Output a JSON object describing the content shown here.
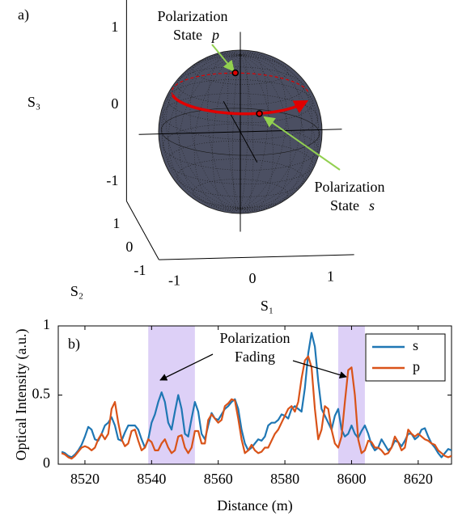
{
  "chart_data": [
    {
      "type": "sphere",
      "panel_label": "a)",
      "xlabel": "S₁",
      "ylabel": "S₂",
      "zlabel": "S₃",
      "xticks": [
        -1,
        0,
        1
      ],
      "yticks": [
        -1,
        0,
        1
      ],
      "zticks": [
        -1,
        0,
        1
      ],
      "sphere_color": "#4b4f62",
      "trajectory": {
        "color": "#e00000",
        "s3": 0.5
      },
      "points": [
        {
          "s1": 0.08,
          "s2": 0.87,
          "s3": 0.5,
          "label_lines": [
            "Polarization",
            "State"
          ],
          "label_symbol": "p"
        },
        {
          "s1": 0.1,
          "s2": -0.87,
          "s3": 0.5,
          "label_lines": [
            "Polarization",
            "State"
          ],
          "label_symbol": "s"
        }
      ],
      "annotation_color": "#92d050"
    },
    {
      "type": "line",
      "panel_label": "b)",
      "xlabel": "Distance (m)",
      "ylabel": "Optical Intensity (a.u.)",
      "xlim": [
        8512,
        8630
      ],
      "ylim": [
        0,
        1
      ],
      "xticks": [
        8520,
        8540,
        8560,
        8580,
        8600,
        8620
      ],
      "yticks": [
        0,
        0.5,
        1
      ],
      "legend": "upper right",
      "highlights": [
        [
          8539,
          8553
        ],
        [
          8596,
          8604
        ]
      ],
      "highlight_color": "#ddd0f7",
      "annotation_lines": [
        "Polarization",
        "Fading"
      ],
      "x": [
        8513,
        8514,
        8515,
        8516,
        8517,
        8518,
        8519,
        8520,
        8521,
        8522,
        8523,
        8524,
        8525,
        8526,
        8527,
        8528,
        8529,
        8530,
        8531,
        8532,
        8533,
        8534,
        8535,
        8536,
        8537,
        8538,
        8539,
        8540,
        8541,
        8542,
        8543,
        8544,
        8545,
        8546,
        8547,
        8548,
        8549,
        8550,
        8551,
        8552,
        8553,
        8554,
        8555,
        8556,
        8557,
        8558,
        8559,
        8560,
        8561,
        8562,
        8563,
        8564,
        8565,
        8566,
        8567,
        8568,
        8569,
        8570,
        8571,
        8572,
        8573,
        8574,
        8575,
        8576,
        8577,
        8578,
        8579,
        8580,
        8581,
        8582,
        8583,
        8584,
        8585,
        8586,
        8587,
        8588,
        8589,
        8590,
        8591,
        8592,
        8593,
        8594,
        8595,
        8596,
        8597,
        8598,
        8599,
        8600,
        8601,
        8602,
        8603,
        8604,
        8605,
        8606,
        8607,
        8608,
        8609,
        8610,
        8611,
        8612,
        8613,
        8614,
        8615,
        8616,
        8617,
        8618,
        8619,
        8620,
        8621,
        8622,
        8623,
        8624,
        8625,
        8626,
        8627,
        8628,
        8629,
        8630
      ],
      "series": [
        {
          "name": "s",
          "color": "#1f77b4",
          "values": [
            0.09,
            0.08,
            0.06,
            0.05,
            0.07,
            0.1,
            0.14,
            0.2,
            0.27,
            0.25,
            0.18,
            0.17,
            0.22,
            0.28,
            0.3,
            0.34,
            0.28,
            0.18,
            0.17,
            0.23,
            0.28,
            0.28,
            0.28,
            0.25,
            0.18,
            0.12,
            0.18,
            0.3,
            0.36,
            0.45,
            0.52,
            0.45,
            0.3,
            0.25,
            0.38,
            0.5,
            0.4,
            0.22,
            0.2,
            0.33,
            0.45,
            0.38,
            0.22,
            0.18,
            0.28,
            0.37,
            0.33,
            0.32,
            0.36,
            0.4,
            0.42,
            0.45,
            0.47,
            0.4,
            0.25,
            0.15,
            0.1,
            0.12,
            0.15,
            0.18,
            0.17,
            0.2,
            0.28,
            0.3,
            0.3,
            0.32,
            0.36,
            0.35,
            0.33,
            0.4,
            0.42,
            0.4,
            0.38,
            0.55,
            0.8,
            0.95,
            0.85,
            0.6,
            0.4,
            0.35,
            0.3,
            0.25,
            0.35,
            0.4,
            0.25,
            0.2,
            0.22,
            0.28,
            0.22,
            0.19,
            0.24,
            0.28,
            0.22,
            0.14,
            0.1,
            0.12,
            0.18,
            0.14,
            0.1,
            0.12,
            0.17,
            0.16,
            0.13,
            0.17,
            0.22,
            0.22,
            0.18,
            0.2,
            0.25,
            0.26,
            0.2,
            0.15,
            0.12,
            0.08,
            0.05,
            0.08,
            0.11,
            0.1
          ]
        },
        {
          "name": "p",
          "color": "#d95319",
          "values": [
            0.08,
            0.07,
            0.05,
            0.04,
            0.06,
            0.09,
            0.12,
            0.13,
            0.12,
            0.1,
            0.12,
            0.18,
            0.22,
            0.18,
            0.22,
            0.4,
            0.45,
            0.3,
            0.18,
            0.13,
            0.15,
            0.24,
            0.25,
            0.17,
            0.1,
            0.12,
            0.18,
            0.16,
            0.1,
            0.1,
            0.15,
            0.18,
            0.12,
            0.08,
            0.1,
            0.2,
            0.21,
            0.12,
            0.08,
            0.12,
            0.24,
            0.24,
            0.15,
            0.15,
            0.32,
            0.36,
            0.33,
            0.3,
            0.32,
            0.42,
            0.44,
            0.47,
            0.46,
            0.33,
            0.18,
            0.08,
            0.1,
            0.14,
            0.1,
            0.08,
            0.09,
            0.12,
            0.12,
            0.17,
            0.22,
            0.25,
            0.3,
            0.35,
            0.4,
            0.42,
            0.38,
            0.45,
            0.62,
            0.75,
            0.78,
            0.7,
            0.4,
            0.18,
            0.25,
            0.42,
            0.4,
            0.25,
            0.15,
            0.12,
            0.2,
            0.45,
            0.68,
            0.7,
            0.5,
            0.18,
            0.08,
            0.1,
            0.17,
            0.16,
            0.12,
            0.12,
            0.1,
            0.07,
            0.08,
            0.12,
            0.2,
            0.16,
            0.1,
            0.12,
            0.25,
            0.22,
            0.2,
            0.22,
            0.2,
            0.18,
            0.17,
            0.15,
            0.14,
            0.1,
            0.08,
            0.06,
            0.05,
            0.06
          ]
        }
      ]
    }
  ]
}
